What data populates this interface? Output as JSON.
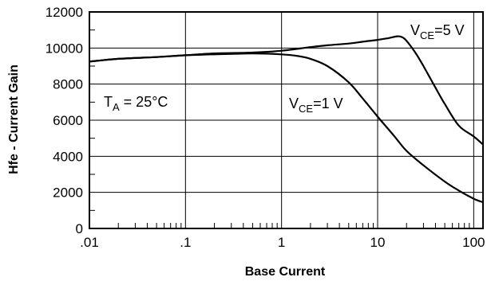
{
  "chart_data": {
    "type": "line",
    "xscale": "log",
    "xlim": [
      0.01,
      125
    ],
    "ylim": [
      0,
      12000
    ],
    "grid": true,
    "xlabel": "Base Current",
    "ylabel": "Hfe - Current Gain",
    "x_tick_labels": [
      ".01",
      ".1",
      "1",
      "10",
      "100"
    ],
    "x_tick_values": [
      0.01,
      0.1,
      1,
      10,
      100
    ],
    "y_tick_labels": [
      "0",
      "2000",
      "4000",
      "6000",
      "8000",
      "10000",
      "12000"
    ],
    "y_tick_values": [
      0,
      2000,
      4000,
      6000,
      8000,
      10000,
      12000
    ],
    "annotation": {
      "main": "T",
      "sub": "A",
      "rest": " = 25°C"
    },
    "series": [
      {
        "name": "VCE=5 V",
        "label_main": "V",
        "label_sub": "CE",
        "label_rest": "=5 V",
        "x": [
          0.01,
          0.02,
          0.05,
          0.1,
          0.2,
          0.5,
          1,
          2,
          3,
          5,
          7,
          10,
          13,
          16,
          18,
          20,
          25,
          30,
          40,
          50,
          70,
          100,
          125
        ],
        "y": [
          9250,
          9400,
          9500,
          9600,
          9700,
          9750,
          9850,
          10050,
          10150,
          10250,
          10350,
          10450,
          10550,
          10650,
          10600,
          10400,
          9700,
          9000,
          7800,
          6900,
          5700,
          5100,
          4650
        ]
      },
      {
        "name": "VCE=1 V",
        "label_main": "V",
        "label_sub": "CE",
        "label_rest": "=1 V",
        "x": [
          0.01,
          0.02,
          0.05,
          0.1,
          0.2,
          0.5,
          1,
          1.5,
          2,
          3,
          5,
          7,
          10,
          15,
          20,
          30,
          50,
          70,
          100,
          125
        ],
        "y": [
          9250,
          9400,
          9500,
          9600,
          9650,
          9700,
          9650,
          9550,
          9400,
          9000,
          8100,
          7200,
          6200,
          5100,
          4300,
          3500,
          2600,
          2100,
          1650,
          1450
        ]
      }
    ]
  }
}
